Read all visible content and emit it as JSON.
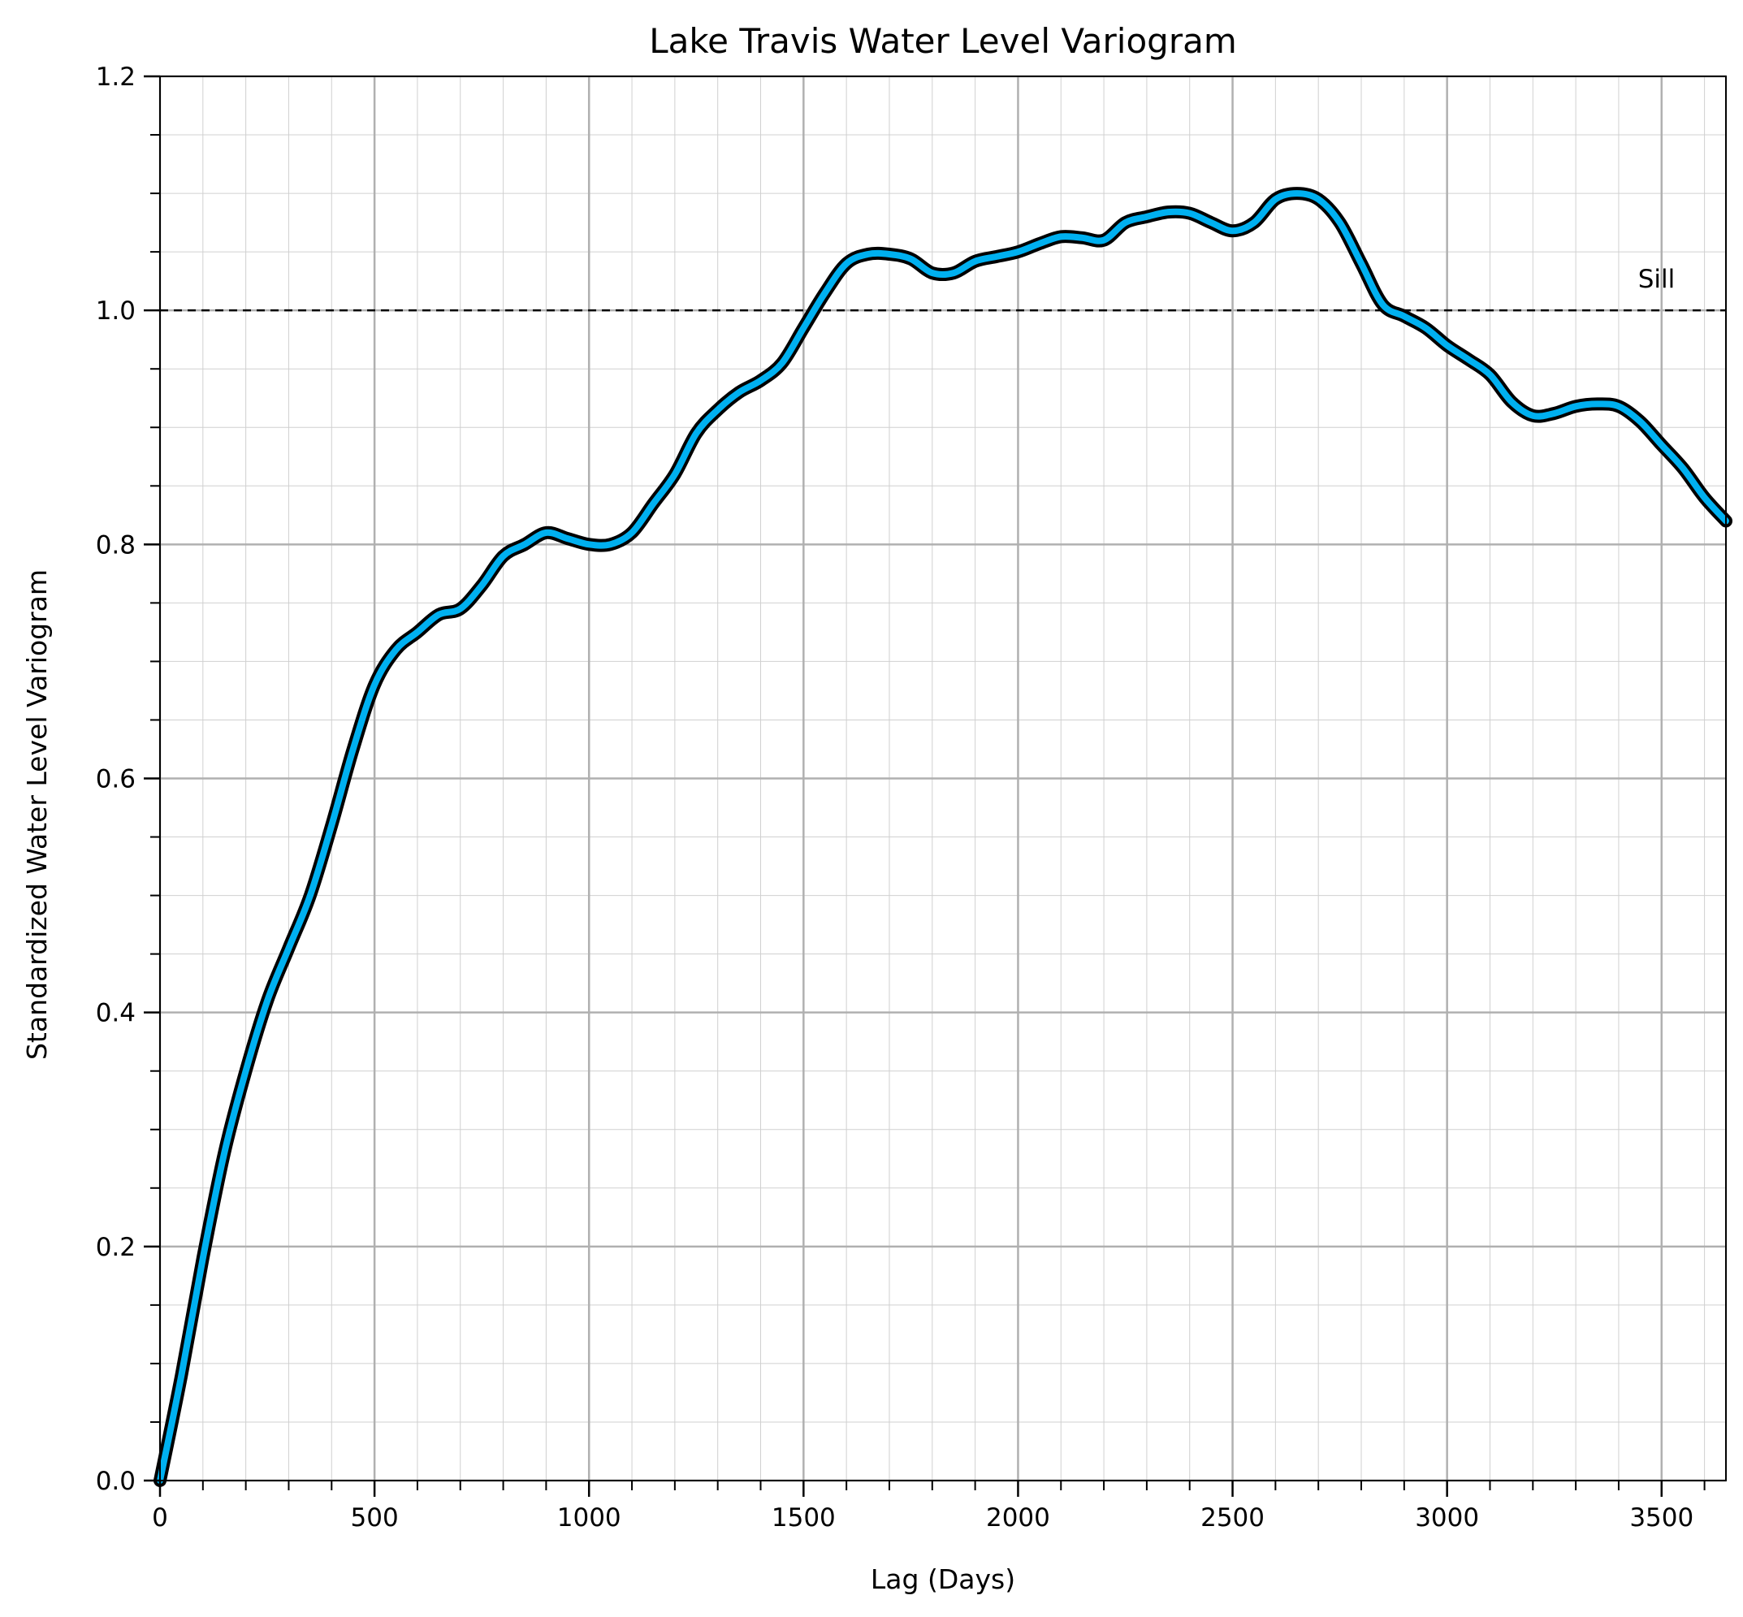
{
  "chart_data": {
    "type": "line",
    "title": "Lake Travis Water Level Variogram",
    "xlabel": "Lag (Days)",
    "ylabel": "Standardized Water Level Variogram",
    "xlim": [
      0,
      3650
    ],
    "ylim": [
      0,
      1.2
    ],
    "x_ticks": [
      "0",
      "500",
      "1000",
      "1500",
      "2000",
      "2500",
      "3000",
      "3500"
    ],
    "x_tick_values": [
      0,
      500,
      1000,
      1500,
      2000,
      2500,
      3000,
      3500
    ],
    "y_ticks": [
      "0.0",
      "0.2",
      "0.4",
      "0.6",
      "0.8",
      "1.0",
      "1.2"
    ],
    "y_tick_values": [
      0,
      0.2,
      0.4,
      0.6,
      0.8,
      1.0,
      1.2
    ],
    "grid": true,
    "minor_grid": true,
    "sill": {
      "value": 1.0,
      "label": "Sill",
      "style": "dashed",
      "color": "#000000"
    },
    "series": [
      {
        "color": "#00b0f0",
        "outline_color": "#000000",
        "x": [
          0,
          50,
          100,
          150,
          200,
          250,
          300,
          350,
          400,
          450,
          500,
          550,
          600,
          650,
          700,
          750,
          800,
          850,
          900,
          950,
          1000,
          1050,
          1100,
          1150,
          1200,
          1250,
          1300,
          1350,
          1400,
          1450,
          1500,
          1550,
          1600,
          1650,
          1700,
          1750,
          1800,
          1850,
          1900,
          1950,
          2000,
          2050,
          2100,
          2150,
          2200,
          2250,
          2300,
          2350,
          2400,
          2450,
          2500,
          2550,
          2600,
          2650,
          2700,
          2750,
          2800,
          2850,
          2900,
          2950,
          3000,
          3050,
          3100,
          3150,
          3200,
          3250,
          3300,
          3350,
          3400,
          3450,
          3500,
          3550,
          3600,
          3650
        ],
        "y": [
          0.0,
          0.09,
          0.19,
          0.28,
          0.35,
          0.41,
          0.455,
          0.5,
          0.56,
          0.625,
          0.68,
          0.71,
          0.725,
          0.74,
          0.745,
          0.765,
          0.79,
          0.8,
          0.81,
          0.805,
          0.8,
          0.8,
          0.81,
          0.835,
          0.86,
          0.895,
          0.915,
          0.93,
          0.94,
          0.955,
          0.985,
          1.015,
          1.04,
          1.048,
          1.048,
          1.044,
          1.032,
          1.032,
          1.042,
          1.046,
          1.05,
          1.057,
          1.063,
          1.062,
          1.06,
          1.075,
          1.08,
          1.084,
          1.083,
          1.075,
          1.068,
          1.075,
          1.095,
          1.1,
          1.095,
          1.075,
          1.04,
          1.005,
          0.995,
          0.985,
          0.97,
          0.958,
          0.945,
          0.922,
          0.91,
          0.912,
          0.918,
          0.92,
          0.918,
          0.905,
          0.885,
          0.865,
          0.84,
          0.82
        ]
      }
    ]
  }
}
